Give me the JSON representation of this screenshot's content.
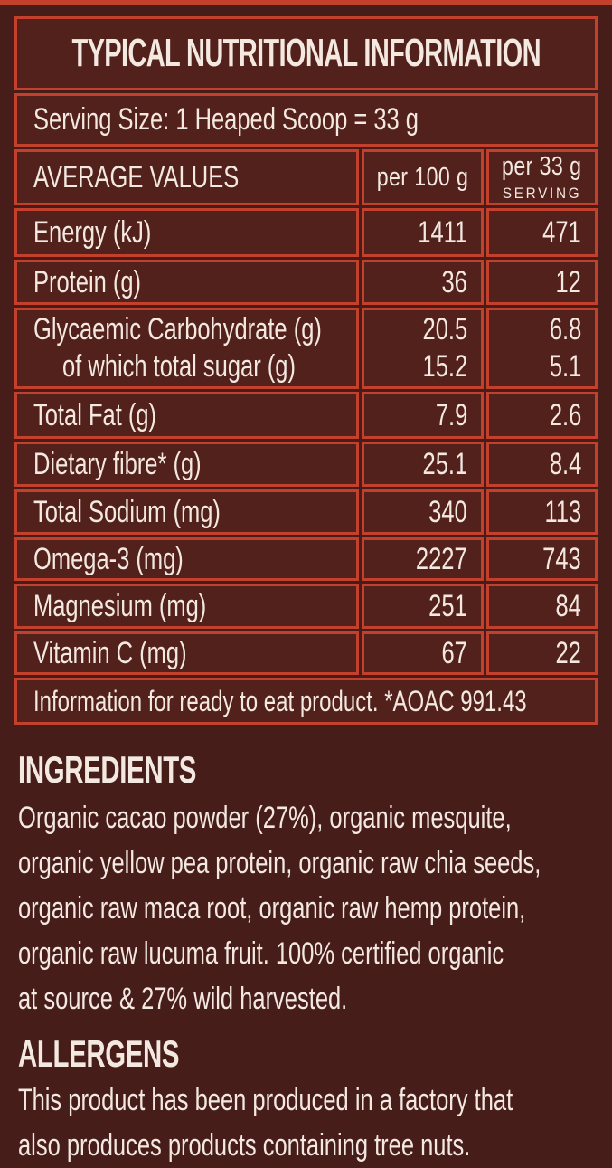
{
  "colors": {
    "background": "#471d1a",
    "cell": "#53211c",
    "border": "#c2402c",
    "text": "#f3e9e1"
  },
  "table": {
    "title": "TYPICAL NUTRITIONAL INFORMATION",
    "serving_size": "Serving Size: 1 Heaped Scoop = 33 g",
    "header": {
      "label": "AVERAGE VALUES",
      "per100": "per 100 g",
      "per33_line1": "per 33 g",
      "per33_line2": "SERVING"
    },
    "rows": [
      {
        "label": "Energy (kJ)",
        "per100": "1411",
        "per33": "471"
      },
      {
        "label": "Protein (g)",
        "per100": "36",
        "per33": "12"
      },
      {
        "label": "Glycaemic Carbohydrate (g)",
        "per100": "20.5",
        "per33": "6.8",
        "sub_label": "of which total sugar (g)",
        "sub_per100": "15.2",
        "sub_per33": "5.1"
      },
      {
        "label": "Total Fat (g)",
        "per100": "7.9",
        "per33": "2.6"
      },
      {
        "label": "Dietary fibre* (g)",
        "per100": "25.1",
        "per33": "8.4"
      },
      {
        "label": "Total Sodium (mg)",
        "per100": "340",
        "per33": "113"
      },
      {
        "label": "Omega-3 (mg)",
        "per100": "2227",
        "per33": "743"
      },
      {
        "label": "Magnesium (mg)",
        "per100": "251",
        "per33": "84"
      },
      {
        "label": "Vitamin C (mg)",
        "per100": "67",
        "per33": "22"
      }
    ],
    "footnote": "Information for ready to eat product. *AOAC 991.43"
  },
  "ingredients": {
    "heading": "INGREDIENTS",
    "text": "Organic cacao powder (27%), organic mesquite,\norganic yellow pea protein, organic raw chia seeds,\norganic raw maca root, organic raw hemp protein,\norganic raw lucuma fruit. 100% certified organic\nat source & 27% wild harvested."
  },
  "allergens": {
    "heading": "ALLERGENS",
    "text": "This product has been produced in a factory that\nalso produces products containing tree nuts."
  }
}
